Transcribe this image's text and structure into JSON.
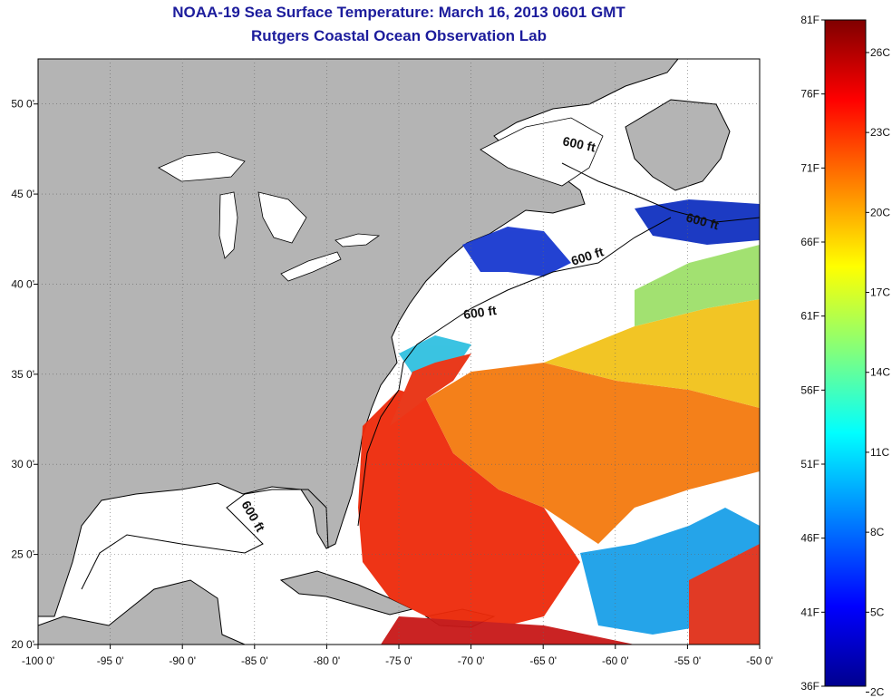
{
  "title": {
    "line1": "NOAA-19 Sea Surface Temperature:  March 16, 2013 0601 GMT",
    "line2": "Rutgers Coastal Ocean Observation Lab"
  },
  "map": {
    "lon_range": [
      -100,
      -50
    ],
    "lat_range": [
      20,
      52.5
    ],
    "lon_ticks": [
      "-100 0'",
      "-95 0'",
      "-90 0'",
      "-85 0'",
      "-80 0'",
      "-75 0'",
      "-70 0'",
      "-65 0'",
      "-60 0'",
      "-55 0'",
      "-50 0'"
    ],
    "lat_ticks": [
      "20 0'",
      "25 0'",
      "30 0'",
      "35 0'",
      "40 0'",
      "45 0'",
      "50 0'"
    ],
    "contour_labels": [
      "600 ft",
      "600 ft",
      "600 ft",
      "600 ft",
      "600 ft"
    ],
    "land_color": "#b4b4b4",
    "no_data_color": "#ffffff"
  },
  "colorbar": {
    "f_labels": [
      "81F",
      "76F",
      "71F",
      "66F",
      "61F",
      "56F",
      "51F",
      "46F",
      "41F",
      "36F"
    ],
    "c_labels": [
      "26C",
      "23C",
      "20C",
      "17C",
      "14C",
      "11C",
      "8C",
      "5C",
      "2C"
    ],
    "colors": [
      "#800000",
      "#ff0000",
      "#ff8000",
      "#ffff00",
      "#80ff80",
      "#00ffff",
      "#0080ff",
      "#0000ff",
      "#000080"
    ]
  }
}
